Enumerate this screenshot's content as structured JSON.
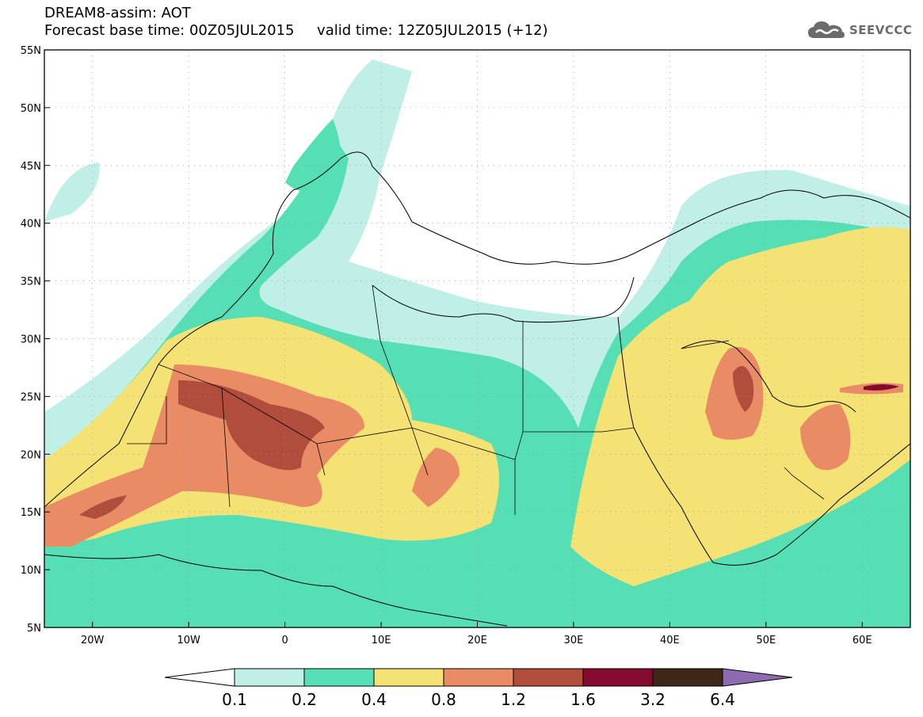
{
  "title": {
    "line1": "DREAM8-assim: AOT",
    "line2": "Forecast base time: 00Z05JUL2015     valid time: 12Z05JUL2015 (+12)"
  },
  "logo": {
    "text": "SEEVCCC",
    "icon": "cloud-icon",
    "color": "#6b6b6b"
  },
  "map": {
    "lon_range": [
      -25,
      65
    ],
    "lat_range": [
      5,
      55
    ],
    "lat_ticks": [
      {
        "value": 55,
        "label": "55N"
      },
      {
        "value": 50,
        "label": "50N"
      },
      {
        "value": 45,
        "label": "45N"
      },
      {
        "value": 40,
        "label": "40N"
      },
      {
        "value": 35,
        "label": "35N"
      },
      {
        "value": 30,
        "label": "30N"
      },
      {
        "value": 25,
        "label": "25N"
      },
      {
        "value": 20,
        "label": "20N"
      },
      {
        "value": 15,
        "label": "15N"
      },
      {
        "value": 10,
        "label": "10N"
      },
      {
        "value": 5,
        "label": "5N"
      }
    ],
    "lon_ticks": [
      {
        "value": -20,
        "label": "20W"
      },
      {
        "value": -10,
        "label": "10W"
      },
      {
        "value": 0,
        "label": "0"
      },
      {
        "value": 10,
        "label": "10E"
      },
      {
        "value": 20,
        "label": "20E"
      },
      {
        "value": 30,
        "label": "30E"
      },
      {
        "value": 40,
        "label": "40E"
      },
      {
        "value": 50,
        "label": "50E"
      },
      {
        "value": 60,
        "label": "60E"
      }
    ],
    "grid": "dotted"
  },
  "colorbar": {
    "levels": [
      "0.1",
      "0.2",
      "0.4",
      "0.8",
      "1.2",
      "1.6",
      "3.2",
      "6.4"
    ],
    "colors": [
      "#ffffff",
      "#c0efe8",
      "#56dfb4",
      "#f4e275",
      "#e98b65",
      "#b04d3d",
      "#860a2e",
      "#3f2717",
      "#8c6bb1"
    ]
  }
}
